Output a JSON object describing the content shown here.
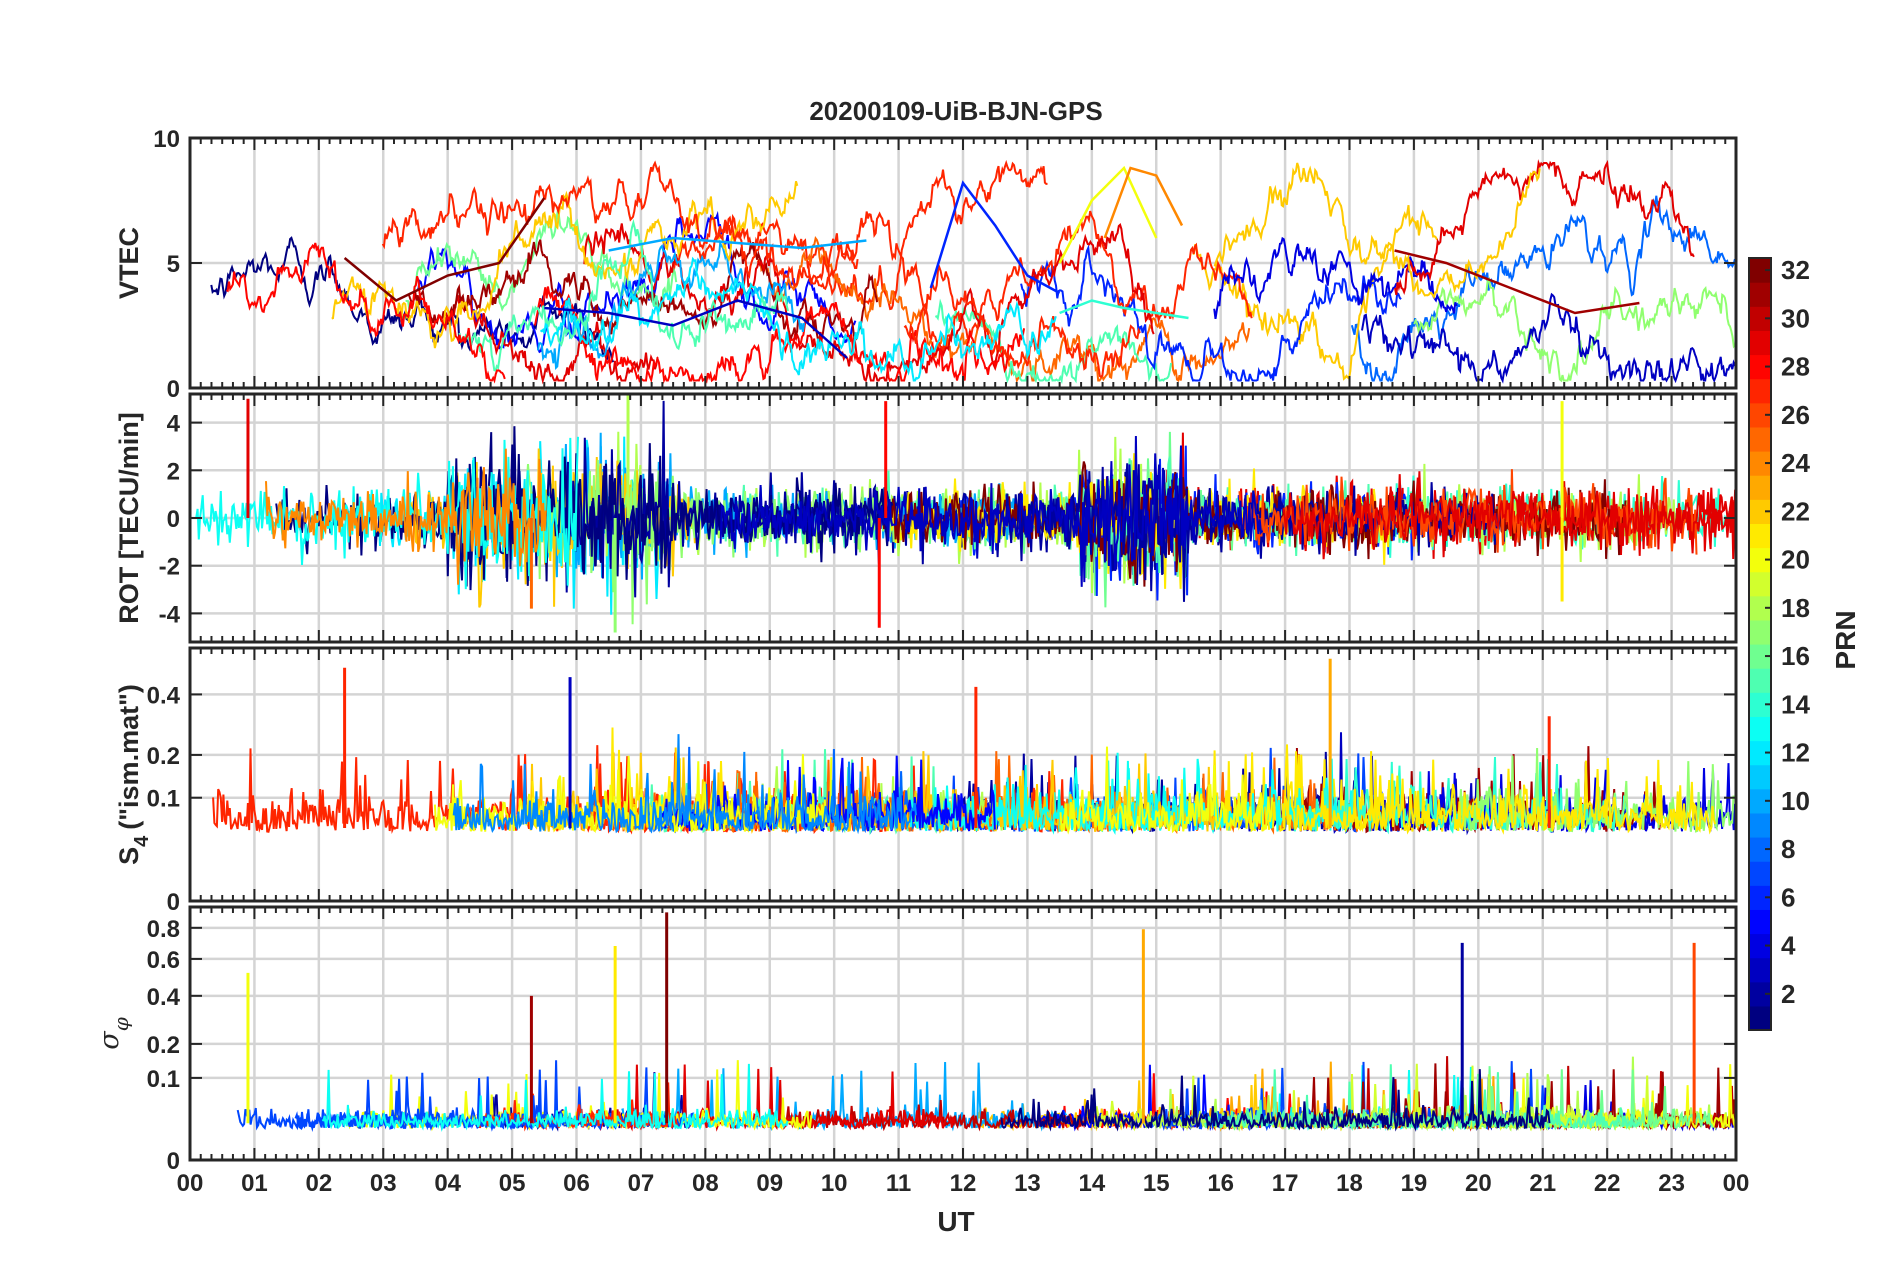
{
  "figure": {
    "title": "20200109-UiB-BJN-GPS",
    "xlabel": "UT",
    "x_ticks": [
      "00",
      "01",
      "02",
      "03",
      "04",
      "05",
      "06",
      "07",
      "08",
      "09",
      "10",
      "11",
      "12",
      "13",
      "14",
      "15",
      "16",
      "17",
      "18",
      "19",
      "20",
      "21",
      "22",
      "23",
      "00"
    ],
    "colorbar": {
      "label": "PRN",
      "range": [
        1,
        32
      ],
      "ticks": [
        "2",
        "4",
        "6",
        "8",
        "10",
        "12",
        "14",
        "16",
        "18",
        "20",
        "22",
        "24",
        "26",
        "28",
        "30",
        "32"
      ],
      "colormap": "jet",
      "levels": 32
    }
  },
  "chart_data": [
    {
      "type": "line",
      "ylabel": "VTEC",
      "xlim": [
        0,
        24
      ],
      "ylim": [
        0,
        10
      ],
      "y_ticks": [
        "0",
        "5",
        "10"
      ],
      "grid": true,
      "series_by": "PRN",
      "description_of_values": "VTEC per satellite roughly 1-9; elevated 5-9 near 04-07 UT and 12-15 UT",
      "series": [
        {
          "prn": 3,
          "x": [
            5.5,
            6.5,
            7.5,
            8.5,
            9.5,
            10.2
          ],
          "y": [
            3.2,
            3.0,
            2.5,
            3.5,
            2.8,
            1.2
          ]
        },
        {
          "prn": 6,
          "x": [
            11.5,
            12.0,
            12.5,
            13.0,
            13.5
          ],
          "y": [
            4.0,
            8.2,
            6.5,
            4.5,
            3.8
          ]
        },
        {
          "prn": 10,
          "x": [
            6.5,
            7.5,
            8.5,
            9.5,
            10.5
          ],
          "y": [
            5.5,
            6.0,
            5.8,
            5.6,
            5.9
          ]
        },
        {
          "prn": 14,
          "x": [
            13.5,
            14.0,
            14.5,
            15.0,
            15.5
          ],
          "y": [
            3.0,
            3.5,
            3.2,
            3.0,
            2.8
          ]
        },
        {
          "prn": 20,
          "x": [
            13.5,
            14.0,
            14.5,
            15.0
          ],
          "y": [
            5.0,
            7.5,
            8.8,
            6.0
          ]
        },
        {
          "prn": 24,
          "x": [
            14.2,
            14.6,
            15.0,
            15.4
          ],
          "y": [
            6.0,
            8.8,
            8.5,
            6.5
          ]
        },
        {
          "prn": 31,
          "x": [
            18.7,
            19.5,
            20.5,
            21.5,
            22.5
          ],
          "y": [
            5.5,
            5.0,
            4.0,
            3.0,
            3.4
          ]
        },
        {
          "prn": 32,
          "x": [
            2.4,
            3.2,
            4.0,
            4.8,
            5.5
          ],
          "y": [
            5.2,
            3.5,
            4.5,
            5.0,
            7.6
          ]
        }
      ]
    },
    {
      "type": "line",
      "ylabel": "ROT [TECU/min]",
      "xlim": [
        0,
        24
      ],
      "ylim": [
        -5.2,
        5.2
      ],
      "y_ticks": [
        "-4",
        "-2",
        "0",
        "2",
        "4"
      ],
      "grid": true,
      "series_by": "PRN",
      "description_of_values": "rate of TEC, mostly within +/-1.5 with spikes to about +/-5",
      "spikes": [
        {
          "prn": 29,
          "x": 0.9,
          "y": 5.0
        },
        {
          "prn": 25,
          "x": 5.3,
          "y": -3.8
        },
        {
          "prn": 17,
          "x": 6.6,
          "y": -4.8
        },
        {
          "prn": 18,
          "x": 6.8,
          "y": 5.2
        },
        {
          "prn": 28,
          "x": 10.8,
          "y": 4.9
        },
        {
          "prn": 28,
          "x": 10.7,
          "y": -4.6
        },
        {
          "prn": 20,
          "x": 21.3,
          "y": 4.9
        },
        {
          "prn": 21,
          "x": 21.3,
          "y": -3.5
        }
      ]
    },
    {
      "type": "line",
      "ylabel": "S4 (\"ism.mat\")",
      "ylabel_main": "S",
      "ylabel_sub": "4",
      "ylabel_rest": "(\"ism.mat\")",
      "xlim": [
        0,
        24
      ],
      "ylim": [
        0,
        0.6
      ],
      "y_ticks": [
        "0",
        "0.1",
        "0.2",
        "0.4"
      ],
      "y_tick_values": [
        0,
        0.1,
        0.2,
        0.4
      ],
      "scale": "sqrt",
      "grid": true,
      "series_by": "PRN",
      "description_of_values": "amplitude scintillation index, baseline ~0.05, bursts up to ~0.55",
      "spikes": [
        {
          "prn": 27,
          "x": 2.4,
          "y": 0.51
        },
        {
          "prn": 3,
          "x": 5.9,
          "y": 0.47
        },
        {
          "prn": 27,
          "x": 12.2,
          "y": 0.43
        },
        {
          "prn": 23,
          "x": 17.7,
          "y": 0.55
        },
        {
          "prn": 27,
          "x": 21.1,
          "y": 0.32
        }
      ]
    },
    {
      "type": "line",
      "ylabel": "σ φ",
      "ylabel_main": "σ",
      "ylabel_sub": "φ",
      "xlim": [
        0,
        24
      ],
      "ylim": [
        0,
        0.95
      ],
      "y_ticks": [
        "0",
        "0.1",
        "0.2",
        "0.4",
        "0.6",
        "0.8"
      ],
      "y_tick_values": [
        0,
        0.1,
        0.2,
        0.4,
        0.6,
        0.8
      ],
      "scale": "sqrt",
      "grid": true,
      "series_by": "PRN",
      "description_of_values": "phase scintillation index, baseline ~0.02, spikes up to ~0.9",
      "spikes": [
        {
          "prn": 20,
          "x": 0.9,
          "y": 0.52
        },
        {
          "prn": 31,
          "x": 5.3,
          "y": 0.4
        },
        {
          "prn": 21,
          "x": 6.6,
          "y": 0.68
        },
        {
          "prn": 32,
          "x": 7.4,
          "y": 0.91
        },
        {
          "prn": 23,
          "x": 14.8,
          "y": 0.79
        },
        {
          "prn": 2,
          "x": 19.75,
          "y": 0.7
        },
        {
          "prn": 26,
          "x": 23.35,
          "y": 0.7
        }
      ]
    }
  ]
}
